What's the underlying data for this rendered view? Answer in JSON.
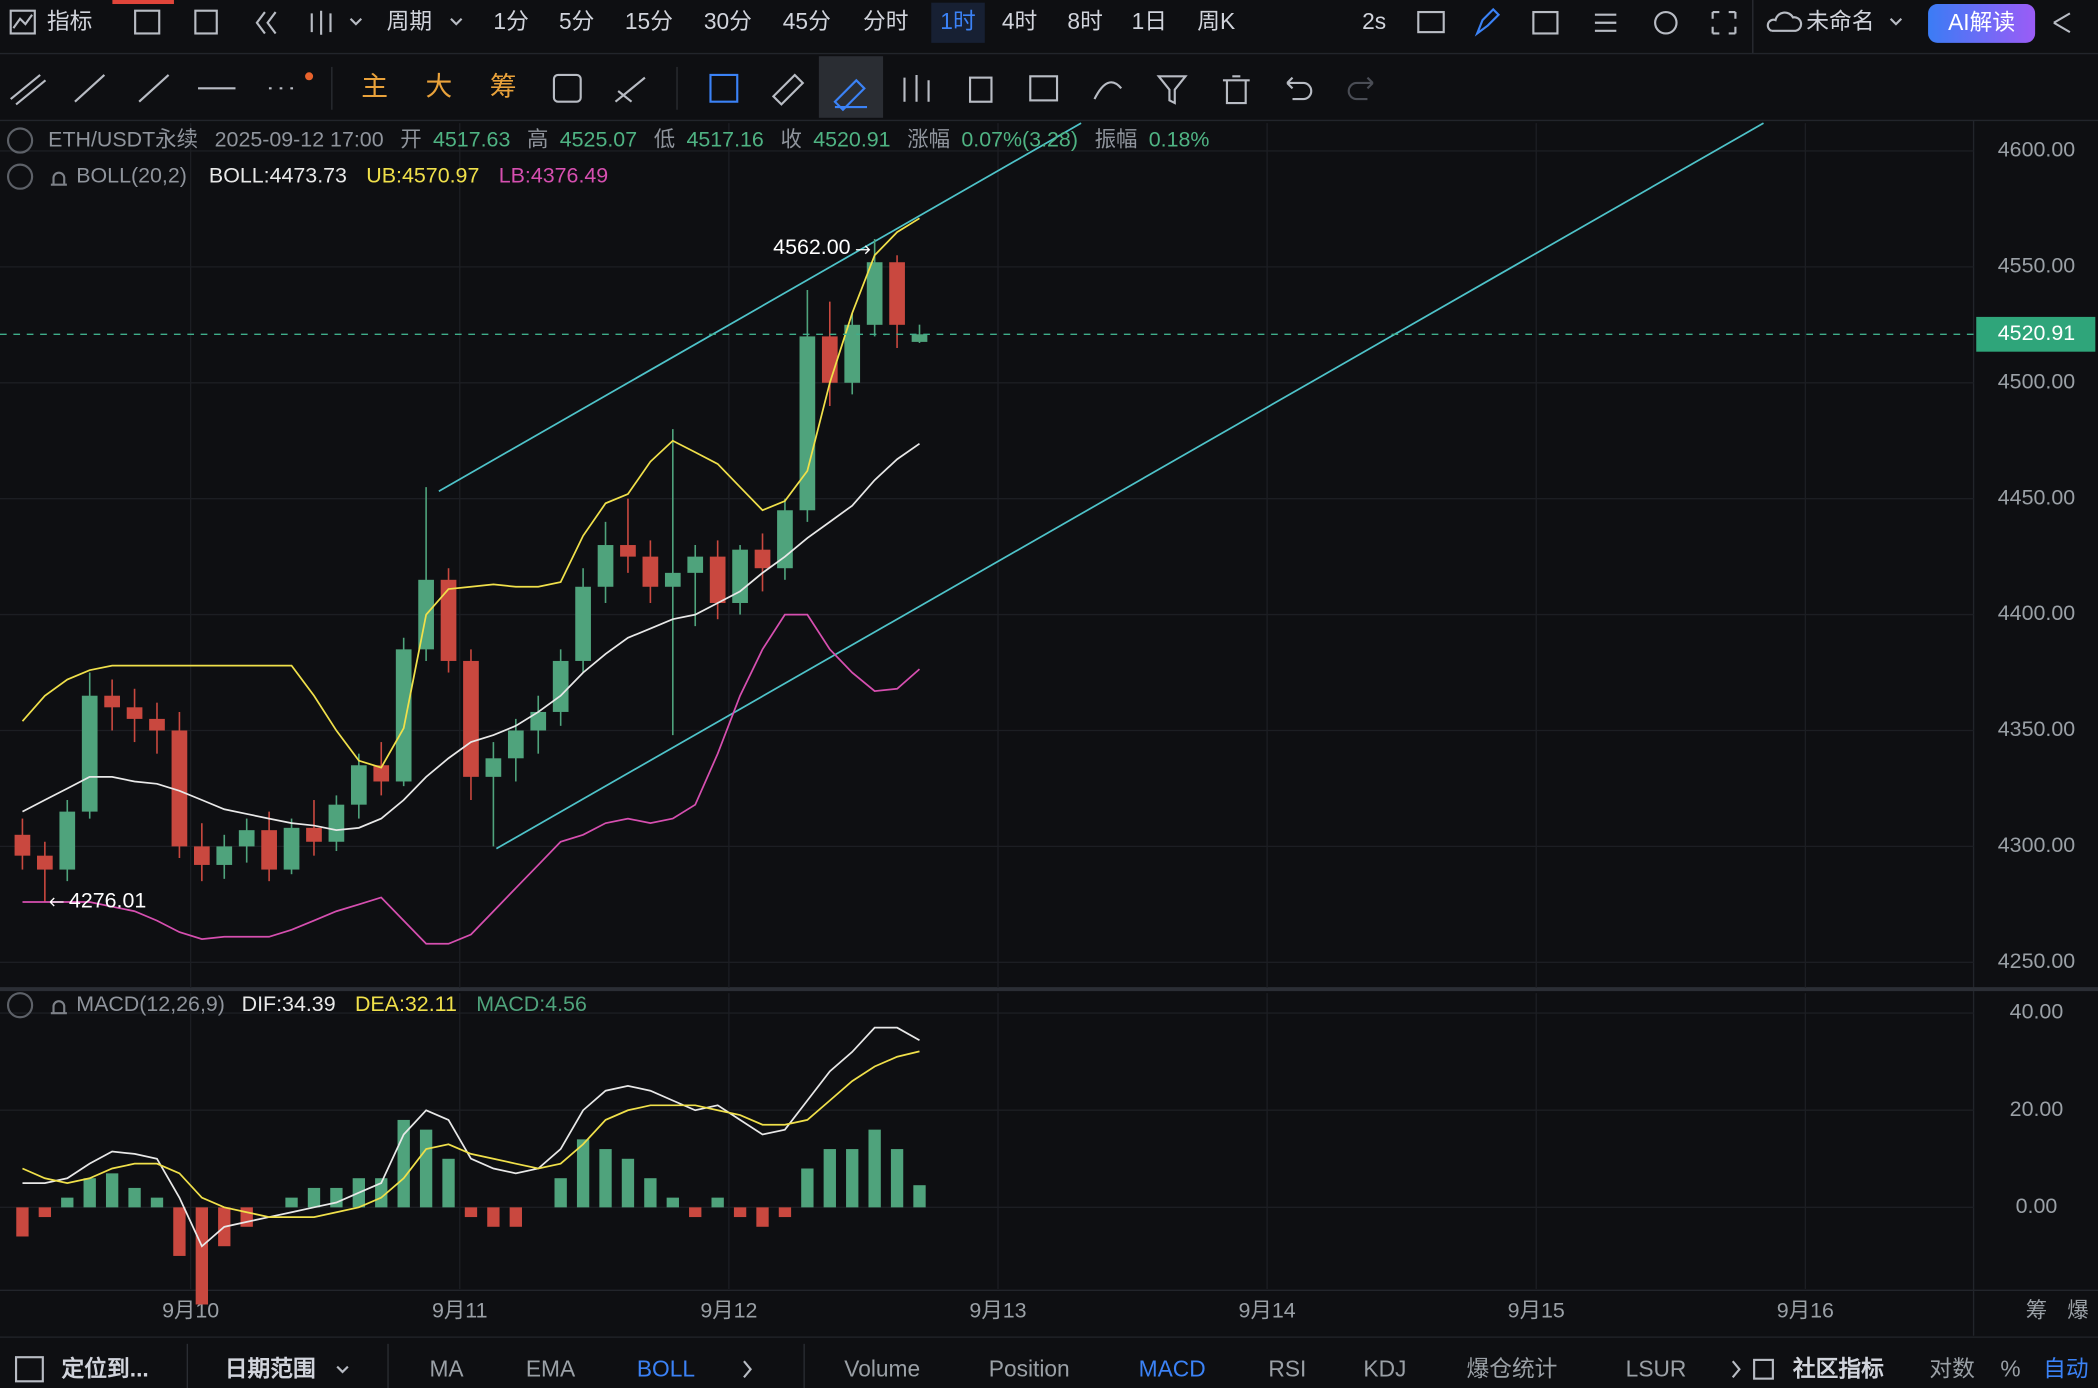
{
  "top_bar": {
    "indicators": "指标",
    "period": "周期",
    "intervals": [
      "1分",
      "5分",
      "15分",
      "30分",
      "45分",
      "分时",
      "1时",
      "4时",
      "8时",
      "1日",
      "周K"
    ],
    "refresh": "2s",
    "layout_name": "未命名",
    "ai": "AI解读"
  },
  "tool_bar": {
    "main": "主",
    "big": "大",
    "chips": "筹"
  },
  "bottom_bar": {
    "locate": "定位到...",
    "date_range": "日期范围",
    "main_indicators": [
      "MA",
      "EMA",
      "BOLL"
    ],
    "sub_indicators": [
      "Volume",
      "Position",
      "MACD",
      "RSI",
      "KDJ",
      "爆仓统计",
      "LSUR"
    ],
    "community": "社区指标",
    "log": "对数",
    "percent": "%",
    "auto": "自动"
  },
  "axis_corner": [
    "筹",
    "爆"
  ],
  "chart_data": {
    "type": "candlestick",
    "symbol": "ETH/USDT永续",
    "time": "2025-09-12 17:00",
    "ohlc_labels": [
      "开",
      "高",
      "低",
      "收"
    ],
    "change_label": "涨幅",
    "change": "0.07%(3.28)",
    "amplitude_label": "振幅",
    "amplitude": "0.18%",
    "indicator": "BOLL(20,2)",
    "up_color": "#4fa37c",
    "down_color": "#c9483f",
    "x": [
      -15,
      -13,
      -11,
      -9,
      -7,
      -5,
      -3,
      -1,
      1,
      3,
      5,
      7,
      9,
      11,
      13,
      15,
      17,
      19,
      21,
      23,
      25,
      27,
      29,
      31,
      33,
      35,
      37,
      39,
      41,
      43,
      45,
      47,
      49,
      51,
      53,
      55,
      57,
      59,
      61,
      63,
      65
    ],
    "ohlc": [
      [
        4305,
        4312,
        4290,
        4296
      ],
      [
        4296,
        4302,
        4276.01,
        4290
      ],
      [
        4290,
        4320,
        4285,
        4315
      ],
      [
        4315,
        4375,
        4312,
        4365
      ],
      [
        4365,
        4372,
        4350,
        4360
      ],
      [
        4360,
        4368,
        4345,
        4355
      ],
      [
        4355,
        4362,
        4340,
        4350
      ],
      [
        4350,
        4358,
        4295,
        4300
      ],
      [
        4300,
        4310,
        4285,
        4292
      ],
      [
        4292,
        4305,
        4286,
        4300
      ],
      [
        4300,
        4312,
        4293,
        4307
      ],
      [
        4307,
        4315,
        4285,
        4290
      ],
      [
        4290,
        4312,
        4288,
        4308
      ],
      [
        4308,
        4320,
        4296,
        4302
      ],
      [
        4302,
        4322,
        4298,
        4318
      ],
      [
        4318,
        4340,
        4312,
        4335
      ],
      [
        4335,
        4345,
        4322,
        4328
      ],
      [
        4328,
        4390,
        4326,
        4385
      ],
      [
        4385,
        4455,
        4380,
        4415
      ],
      [
        4415,
        4420,
        4375,
        4380
      ],
      [
        4380,
        4385,
        4320,
        4330
      ],
      [
        4330,
        4345,
        4300,
        4338
      ],
      [
        4338,
        4355,
        4328,
        4350
      ],
      [
        4350,
        4365,
        4340,
        4358
      ],
      [
        4358,
        4385,
        4352,
        4380
      ],
      [
        4380,
        4420,
        4375,
        4412
      ],
      [
        4412,
        4440,
        4405,
        4430
      ],
      [
        4430,
        4450,
        4418,
        4425
      ],
      [
        4425,
        4432,
        4405,
        4412
      ],
      [
        4412,
        4480,
        4348,
        4418
      ],
      [
        4418,
        4430,
        4395,
        4425
      ],
      [
        4425,
        4432,
        4398,
        4405
      ],
      [
        4405,
        4430,
        4400,
        4428
      ],
      [
        4428,
        4435,
        4410,
        4420
      ],
      [
        4420,
        4450,
        4415,
        4445
      ],
      [
        4445,
        4540,
        4440,
        4520
      ],
      [
        4520,
        4535,
        4490,
        4500
      ],
      [
        4500,
        4530,
        4495,
        4525
      ],
      [
        4525,
        4562,
        4520,
        4552
      ],
      [
        4552,
        4555,
        4515,
        4525
      ],
      [
        4517.63,
        4525.07,
        4517.16,
        4520.91
      ]
    ],
    "series": [
      {
        "name": "BOLL:",
        "color": "#e8e8e8",
        "values": [
          4315,
          4320,
          4325,
          4330,
          4330,
          4328,
          4327,
          4324,
          4320,
          4316,
          4314,
          4312,
          4310,
          4309,
          4307,
          4308,
          4312,
          4320,
          4330,
          4338,
          4345,
          4348,
          4352,
          4358,
          4365,
          4375,
          4383,
          4390,
          4394,
          4398,
          4400,
          4405,
          4410,
          4418,
          4425,
          4433,
          4440,
          4447,
          4458,
          4467,
          4473.73
        ]
      },
      {
        "name": "UB:",
        "color": "#f0e04a",
        "values": [
          4354,
          4365,
          4372,
          4376,
          4378,
          4378,
          4378,
          4378,
          4378,
          4378,
          4378,
          4378,
          4378,
          4365,
          4350,
          4337,
          4334,
          4351,
          4400,
          4411,
          4412,
          4413,
          4412,
          4412,
          4414,
          4434,
          4448,
          4452,
          4466,
          4475,
          4470,
          4465,
          4455,
          4445,
          4449,
          4462,
          4500,
          4530,
          4555,
          4565,
          4570.97
        ]
      },
      {
        "name": "LB:",
        "color": "#d64fb0",
        "values": [
          4276,
          4276,
          4276,
          4276,
          4274,
          4272,
          4268,
          4263,
          4260,
          4261,
          4261,
          4261,
          4264,
          4268,
          4272,
          4275,
          4278,
          4268,
          4258,
          4258,
          4262,
          4272,
          4282,
          4292,
          4302,
          4305,
          4310,
          4312,
          4310,
          4312,
          4318,
          4340,
          4365,
          4385,
          4400,
          4400,
          4385,
          4375,
          4367,
          4368,
          4376.49
        ]
      }
    ],
    "annotations": [
      {
        "label": "4562.00",
        "value": 4562,
        "x": 61
      },
      {
        "label": "4276.01",
        "value": 4276.01,
        "x": -13
      }
    ],
    "xlim": [
      -17,
      159
    ],
    "xticks": [
      {
        "value": 0,
        "label": "9月10"
      },
      {
        "value": 24,
        "label": "9月11"
      },
      {
        "value": 48,
        "label": "9月12"
      },
      {
        "value": 72,
        "label": "9月13"
      },
      {
        "value": 96,
        "label": "9月14"
      },
      {
        "value": 120,
        "label": "9月15"
      },
      {
        "value": 144,
        "label": "9月16"
      }
    ],
    "ylim": [
      4239,
      4612
    ],
    "yticks": [
      {
        "value": 4250,
        "label": "4250.00"
      },
      {
        "value": 4300,
        "label": "4300.00"
      },
      {
        "value": 4350,
        "label": "4350.00"
      },
      {
        "value": 4400,
        "label": "4400.00"
      },
      {
        "value": 4450,
        "label": "4450.00"
      },
      {
        "value": 4500,
        "label": "4500.00"
      },
      {
        "value": 4550,
        "label": "4550.00"
      },
      {
        "value": 4600,
        "label": "4600.00"
      }
    ],
    "grid": true,
    "macd": {
      "indicator": "MACD(12,26,9)",
      "ylim": [
        -16.8,
        44.1
      ],
      "yticks": [
        {
          "value": 0,
          "label": "0.00"
        },
        {
          "value": 20,
          "label": "20.00"
        },
        {
          "value": 40,
          "label": "40.00"
        }
      ],
      "series": [
        {
          "name": "DIF:",
          "color": "#e8e8e8",
          "values": [
            5,
            5,
            6,
            9,
            11.5,
            11,
            10,
            2,
            -8,
            -4,
            -3,
            -2,
            -1,
            0,
            1,
            3,
            5,
            15,
            20,
            18,
            10,
            8,
            7,
            8,
            12,
            20,
            24,
            25,
            24,
            22,
            20,
            21,
            18,
            15,
            16,
            22,
            28,
            32,
            37,
            37,
            34.39
          ]
        },
        {
          "name": "DEA:",
          "color": "#f0e04a",
          "values": [
            8,
            6,
            5,
            6,
            8,
            9,
            9,
            7,
            2,
            0,
            -1,
            -2,
            -2,
            -2,
            -1,
            0,
            2,
            6,
            12,
            13,
            11,
            10,
            9,
            8,
            9,
            13,
            18,
            20,
            21,
            21,
            21,
            20,
            19,
            17,
            17,
            18,
            22,
            26,
            29,
            31,
            32.11
          ]
        }
      ],
      "histogram": {
        "name": "MACD:",
        "color": "#4fa37c",
        "down_color": "#c9483f",
        "values": [
          -6,
          -2,
          2,
          6,
          7,
          4,
          2,
          -10,
          -20,
          -8,
          -4,
          0,
          2,
          4,
          4,
          6,
          6,
          18,
          16,
          10,
          -2,
          -4,
          -4,
          0,
          6,
          14,
          12,
          10,
          6,
          2,
          -2,
          2,
          -2,
          -4,
          -2,
          8,
          12,
          12,
          16,
          12,
          4.56
        ]
      }
    }
  }
}
